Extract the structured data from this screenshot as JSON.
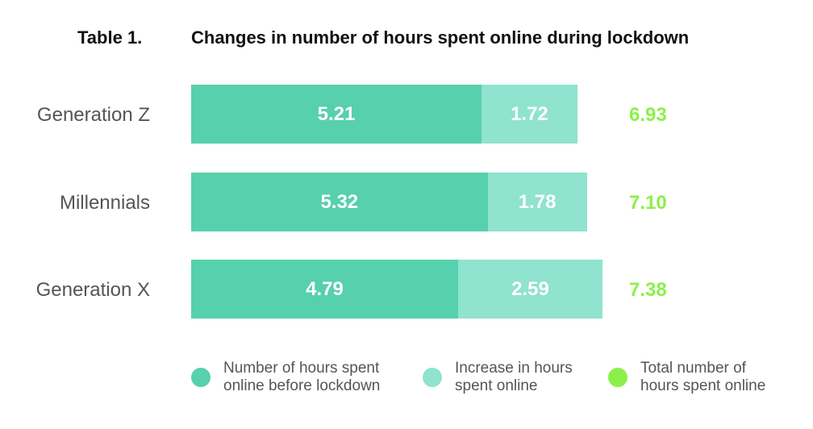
{
  "table_label": "Table 1.",
  "chart_data": {
    "type": "bar",
    "orientation": "horizontal-stacked",
    "title": "Changes in number of hours spent online during lockdown",
    "categories": [
      "Generation Z",
      "Millennials",
      "Generation X"
    ],
    "series": [
      {
        "name": "Number of hours spent online before lockdown",
        "color": "#57d0ad",
        "values": [
          5.21,
          5.32,
          4.79
        ],
        "labels": [
          "5.21",
          "5.32",
          "4.79"
        ]
      },
      {
        "name": "Increase in hours spent online",
        "color": "#8fe3cf",
        "values": [
          1.72,
          1.78,
          2.59
        ],
        "labels": [
          "1.72",
          "1.78",
          "2.59"
        ]
      },
      {
        "name": "Total number of hours spent online",
        "color": "#8cf04a",
        "values": [
          6.93,
          7.1,
          7.38
        ],
        "labels": [
          "6.93",
          "7.10",
          "7.38"
        ]
      }
    ],
    "legend_position": "bottom"
  }
}
